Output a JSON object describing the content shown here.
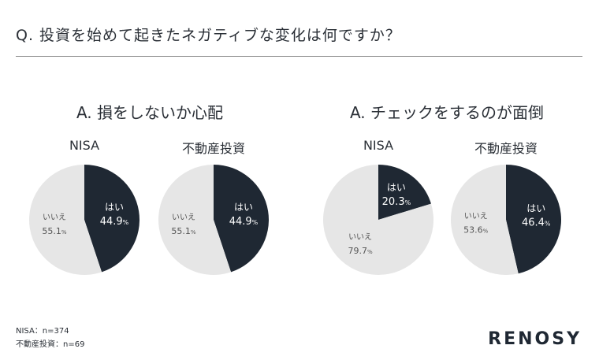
{
  "question": "Q. 投資を始めて起きたネガティブな変化は何ですか？",
  "footnotes": [
    "NISA：n=374",
    "不動産投資：n=69"
  ],
  "logo": "RENOSY",
  "colors": {
    "yes": "#1f2833",
    "no": "#e6e6e6"
  },
  "chart_data": [
    {
      "type": "pie",
      "group_title": "A. 損をしないか心配",
      "title": "NISA",
      "categories": [
        "はい",
        "いいえ"
      ],
      "values": [
        44.9,
        55.1
      ],
      "value_labels": [
        "44.9",
        "55.1"
      ],
      "unit": "%"
    },
    {
      "type": "pie",
      "group_title": "A. 損をしないか心配",
      "title": "不動産投資",
      "categories": [
        "はい",
        "いいえ"
      ],
      "values": [
        44.9,
        55.1
      ],
      "value_labels": [
        "44.9",
        "55.1"
      ],
      "unit": "%"
    },
    {
      "type": "pie",
      "group_title": "A. チェックをするのが面倒",
      "title": "NISA",
      "categories": [
        "はい",
        "いいえ"
      ],
      "values": [
        20.3,
        79.7
      ],
      "value_labels": [
        "20.3",
        "79.7"
      ],
      "unit": "%"
    },
    {
      "type": "pie",
      "group_title": "A. チェックをするのが面倒",
      "title": "不動産投資",
      "categories": [
        "はい",
        "いいえ"
      ],
      "values": [
        46.4,
        53.6
      ],
      "value_labels": [
        "46.4",
        "53.6"
      ],
      "unit": "%"
    }
  ]
}
